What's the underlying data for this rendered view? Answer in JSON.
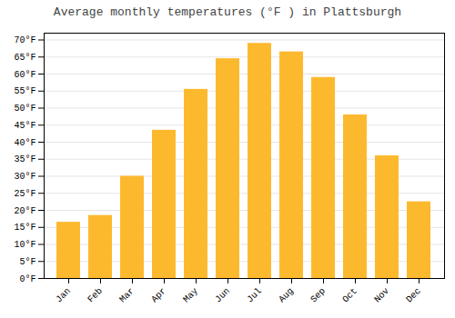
{
  "chart_data": {
    "type": "bar",
    "title": "Average monthly temperatures (°F ) in Plattsburgh",
    "categories": [
      "Jan",
      "Feb",
      "Mar",
      "Apr",
      "May",
      "Jun",
      "Jul",
      "Aug",
      "Sep",
      "Oct",
      "Nov",
      "Dec"
    ],
    "values": [
      16.5,
      18.5,
      30.0,
      43.5,
      55.5,
      64.5,
      69.0,
      66.5,
      59.0,
      48.0,
      36.0,
      22.5
    ],
    "color": "#FDB92E",
    "ylim": [
      0,
      72
    ],
    "yticks": [
      {
        "value": 0,
        "label": "0°F"
      },
      {
        "value": 5,
        "label": "5°F"
      },
      {
        "value": 10,
        "label": "10°F"
      },
      {
        "value": 15,
        "label": "15°F"
      },
      {
        "value": 20,
        "label": "20°F"
      },
      {
        "value": 25,
        "label": "25°F"
      },
      {
        "value": 30,
        "label": "30°F"
      },
      {
        "value": 35,
        "label": "35°F"
      },
      {
        "value": 40,
        "label": "40°F"
      },
      {
        "value": 45,
        "label": "45°F"
      },
      {
        "value": 50,
        "label": "50°F"
      },
      {
        "value": 55,
        "label": "55°F"
      },
      {
        "value": 60,
        "label": "60°F"
      },
      {
        "value": 65,
        "label": "65°F"
      },
      {
        "value": 70,
        "label": "70°F"
      }
    ],
    "grid": true
  }
}
